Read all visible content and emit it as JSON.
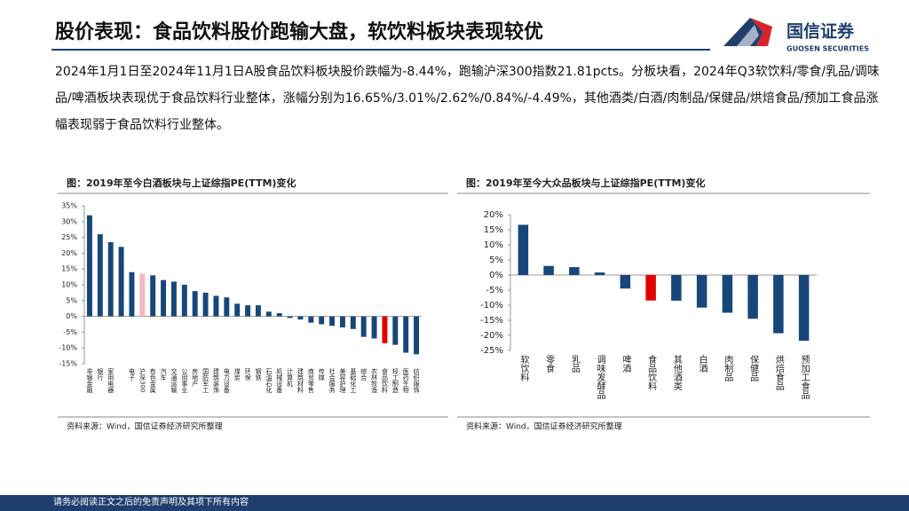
{
  "header": {
    "title": "股价表现：食品饮料股价跑输大盘，软饮料板块表现较优",
    "logo_cn": "国信证券",
    "logo_en": "GUOSEN SECURITIES"
  },
  "paragraph": "2024年1月1日至2024年11月1日A股食品饮料板块股价跌幅为-8.44%，跑输沪深300指数21.81pcts。分板块看，2024年Q3软饮料/零食/乳品/调味品/啤酒板块表现优于食品饮料行业整体，涨幅分别为16.65%/3.01%/2.62%/0.84%/-4.49%，其他酒类/白酒/肉制品/保健品/烘焙食品/预加工食品涨幅表现弱于食品饮料行业整体。",
  "chart_data": [
    {
      "type": "bar",
      "title": "图：2019年至今白酒板块与上证综指PE(TTM)变化",
      "categories": [
        "非银金融",
        "银行",
        "家用电器",
        null,
        "电子",
        "沪深300",
        "有色金属",
        "汽车",
        "交通运输",
        "公用事业",
        "房地产",
        "国防军工",
        "建筑装饰",
        "电力设备",
        "煤炭",
        "环保",
        "钢铁",
        "石油石化",
        "机械设备",
        "计算机",
        "建筑材料",
        "商贸零售",
        "传媒",
        "社会服务",
        "美容护理",
        "基础化工",
        "综合",
        "农林牧渔",
        "食品饮料",
        "轻工制造",
        "医药生物",
        "纺织服饰"
      ],
      "values": [
        32,
        26,
        23.5,
        22,
        14,
        13.5,
        13,
        11.5,
        11,
        10,
        8,
        7.5,
        6.5,
        6,
        4,
        3.5,
        3.5,
        1.5,
        1,
        -0.5,
        -1,
        -2,
        -2.5,
        -3,
        -3.5,
        -4,
        -6.5,
        -7,
        -8.5,
        -9,
        -11.5,
        -12
      ],
      "colors": [
        "#17477a",
        "#17477a",
        "#17477a",
        "#17477a",
        "#17477a",
        "#f4b8c0",
        "#17477a",
        "#17477a",
        "#17477a",
        "#17477a",
        "#17477a",
        "#17477a",
        "#17477a",
        "#17477a",
        "#17477a",
        "#17477a",
        "#17477a",
        "#17477a",
        "#17477a",
        "#17477a",
        "#17477a",
        "#17477a",
        "#17477a",
        "#17477a",
        "#17477a",
        "#17477a",
        "#17477a",
        "#17477a",
        "#e00000",
        "#17477a",
        "#17477a",
        "#17477a"
      ],
      "ylim": [
        -15,
        35
      ],
      "yticks": [
        {
          "value": -15,
          "label": "-15%"
        },
        {
          "value": -10,
          "label": "-10%"
        },
        {
          "value": -5,
          "label": "-5%"
        },
        {
          "value": 0,
          "label": "0%"
        },
        {
          "value": 5,
          "label": "5%"
        },
        {
          "value": 10,
          "label": "10%"
        },
        {
          "value": 15,
          "label": "15%"
        },
        {
          "value": 20,
          "label": "20%"
        },
        {
          "value": 25,
          "label": "25%"
        },
        {
          "value": 30,
          "label": "30%"
        },
        {
          "value": 35,
          "label": "35%"
        }
      ],
      "source": "资料来源：Wind，国信证券经济研究所整理"
    },
    {
      "type": "bar",
      "title": "图：2019年至今大众品板块与上证综指PE(TTM)变化",
      "categories": [
        "软饮料",
        "零食",
        "乳品",
        "调味发酵品",
        "啤酒",
        "食品饮料",
        "其他酒类",
        "白酒",
        "肉制品",
        "保健品",
        "烘焙食品",
        "预加工食品"
      ],
      "values": [
        16.65,
        3.01,
        2.62,
        0.84,
        -4.49,
        -8.44,
        -8.5,
        -10.8,
        -12.5,
        -14.5,
        -19.3,
        -21.8
      ],
      "colors": [
        "#17477a",
        "#17477a",
        "#17477a",
        "#17477a",
        "#17477a",
        "#e00000",
        "#17477a",
        "#17477a",
        "#17477a",
        "#17477a",
        "#17477a",
        "#17477a"
      ],
      "ylim": [
        -25,
        20
      ],
      "yticks": [
        {
          "value": -25,
          "label": "-25%"
        },
        {
          "value": -20,
          "label": "-20%"
        },
        {
          "value": -15,
          "label": "-15%"
        },
        {
          "value": -10,
          "label": "-10%"
        },
        {
          "value": -5,
          "label": "-5%"
        },
        {
          "value": 0,
          "label": "0%"
        },
        {
          "value": 5,
          "label": "5%"
        },
        {
          "value": 10,
          "label": "10%"
        },
        {
          "value": 15,
          "label": "15%"
        },
        {
          "value": 20,
          "label": "20%"
        }
      ],
      "source": "资料来源：Wind，国信证券经济研究所整理"
    }
  ],
  "footer": "请务必阅读正文之后的免责声明及其项下所有内容"
}
